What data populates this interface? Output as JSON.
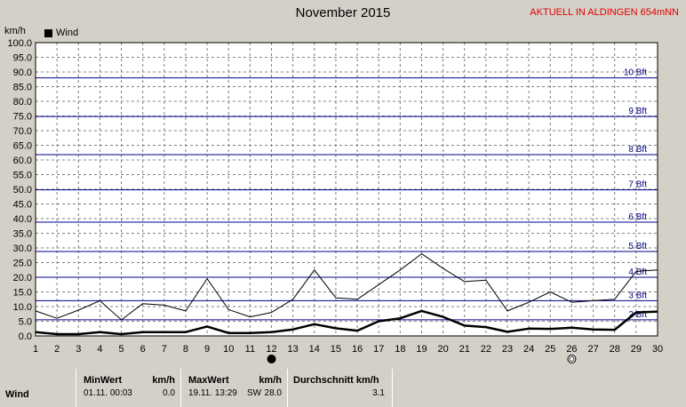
{
  "header": {
    "title": "November 2015",
    "station": "AKTUELL IN ALDINGEN 654mNN",
    "unit_label": "km/h"
  },
  "legend": {
    "label": "Wind",
    "color": "#000000"
  },
  "colors": {
    "background": "#d4d0c8",
    "plot_bg": "#ffffff",
    "beaufort_line": "#00008b",
    "beaufort_text": "#000080",
    "gust_line": "#000000",
    "avg_line": "#000000"
  },
  "chart_data": {
    "type": "line",
    "title": "November 2015",
    "ylabel": "km/h",
    "xlim": [
      1,
      30
    ],
    "ylim": [
      0,
      100
    ],
    "y_ticks": [
      "0.0",
      "5.0",
      "10.0",
      "15.0",
      "20.0",
      "25.0",
      "30.0",
      "35.0",
      "40.0",
      "45.0",
      "50.0",
      "55.0",
      "60.0",
      "65.0",
      "70.0",
      "75.0",
      "80.0",
      "85.0",
      "90.0",
      "95.0",
      "100.0"
    ],
    "x": [
      1,
      2,
      3,
      4,
      5,
      6,
      7,
      8,
      9,
      10,
      11,
      12,
      13,
      14,
      15,
      16,
      17,
      18,
      19,
      20,
      21,
      22,
      23,
      24,
      25,
      26,
      27,
      28,
      29,
      30
    ],
    "series": [
      {
        "name": "Wind",
        "values": [
          1.3,
          0.6,
          0.6,
          1.3,
          0.6,
          1.3,
          1.3,
          1.3,
          3.2,
          1.0,
          1.0,
          1.3,
          2.2,
          4.0,
          2.6,
          1.8,
          5.0,
          6.0,
          8.5,
          6.5,
          3.5,
          3.0,
          1.4,
          2.5,
          2.4,
          2.8,
          2.2,
          2.1,
          8.0,
          8.3
        ]
      },
      {
        "values": [
          8.5,
          6.0,
          8.8,
          12.0,
          5.5,
          11.0,
          10.5,
          8.5,
          19.5,
          9.0,
          6.5,
          8.0,
          12.5,
          22.5,
          13.0,
          12.5,
          17.5,
          22.5,
          28.0,
          23.0,
          18.5,
          19.0,
          8.5,
          11.5,
          15.0,
          11.5,
          12.0,
          12.5,
          22.0,
          22.5
        ]
      }
    ],
    "beaufort": [
      {
        "label": "2 Bft",
        "value": 5.5
      },
      {
        "label": "3 Bft",
        "value": 12.0
      },
      {
        "label": "4 Bft",
        "value": 20.0
      },
      {
        "label": "5 Bft",
        "value": 28.8
      },
      {
        "label": "6 Bft",
        "value": 38.8
      },
      {
        "label": "7 Bft",
        "value": 49.8
      },
      {
        "label": "8 Bft",
        "value": 61.8
      },
      {
        "label": "9 Bft",
        "value": 74.8
      },
      {
        "label": "10 Bft",
        "value": 88.0
      }
    ],
    "markers": [
      {
        "day": 12,
        "symbol": "full-moon-icon"
      },
      {
        "day": 26,
        "symbol": "new-moon-icon"
      }
    ],
    "grid": true
  },
  "stats": {
    "row_label": "Wind",
    "min_header": "MinWert",
    "min_unit": "km/h",
    "min_time": "01.11.  00:03",
    "min_value": "0.0",
    "max_header": "MaxWert",
    "max_unit": "km/h",
    "max_time": "19.11.  13:29",
    "max_dir": "SW",
    "max_value": "28.0",
    "avg_header": "Durchschnitt km/h",
    "avg_value": "3.1"
  }
}
